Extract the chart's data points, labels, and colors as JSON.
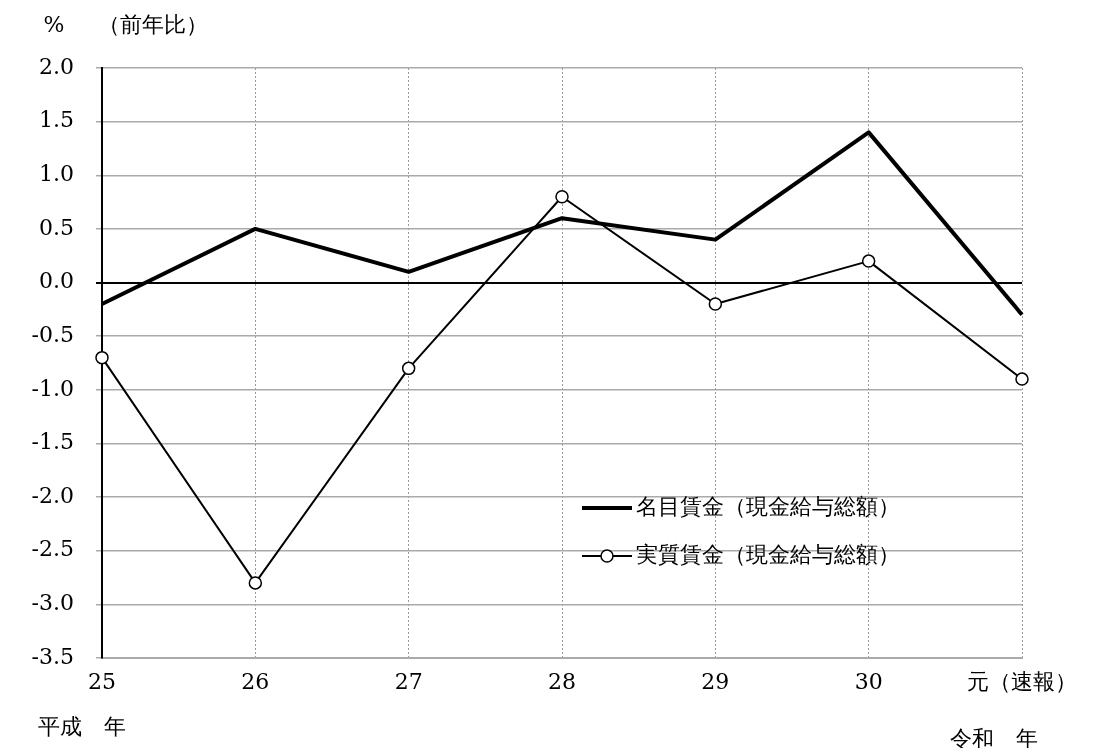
{
  "chart_data": {
    "type": "line",
    "ylabel": "%",
    "annotations": [
      "（前年比）",
      "平成　年",
      "令和　年"
    ],
    "categories": [
      "25",
      "26",
      "27",
      "28",
      "29",
      "30",
      "元（速報）"
    ],
    "series": [
      {
        "name": "名目賃金（現金給与総額）",
        "color": "#000000",
        "marker": "none",
        "values": [
          -0.2,
          0.5,
          0.1,
          0.6,
          0.4,
          1.4,
          -0.3
        ]
      },
      {
        "name": "実質賃金（現金給与総額）",
        "color": "#000000",
        "marker": "circle",
        "values": [
          -0.7,
          -2.8,
          -0.8,
          0.8,
          -0.2,
          0.2,
          -0.9
        ]
      }
    ],
    "ylim": [
      -3.5,
      2
    ],
    "yticks": [
      {
        "value": -3.5,
        "label": "-3.5"
      },
      {
        "value": -3,
        "label": "-3.0"
      },
      {
        "value": -2.5,
        "label": "-2.5"
      },
      {
        "value": -2,
        "label": "-2.0"
      },
      {
        "value": -1.5,
        "label": "-1.5"
      },
      {
        "value": -1,
        "label": "-1.0"
      },
      {
        "value": -0.5,
        "label": "-0.5"
      },
      {
        "value": 0,
        "label": "0.0"
      },
      {
        "value": 0.5,
        "label": "0.5"
      },
      {
        "value": 1,
        "label": "1.0"
      },
      {
        "value": 1.5,
        "label": "1.5"
      },
      {
        "value": 2,
        "label": "2.0"
      }
    ],
    "grid": true,
    "legend": "bottom right"
  }
}
